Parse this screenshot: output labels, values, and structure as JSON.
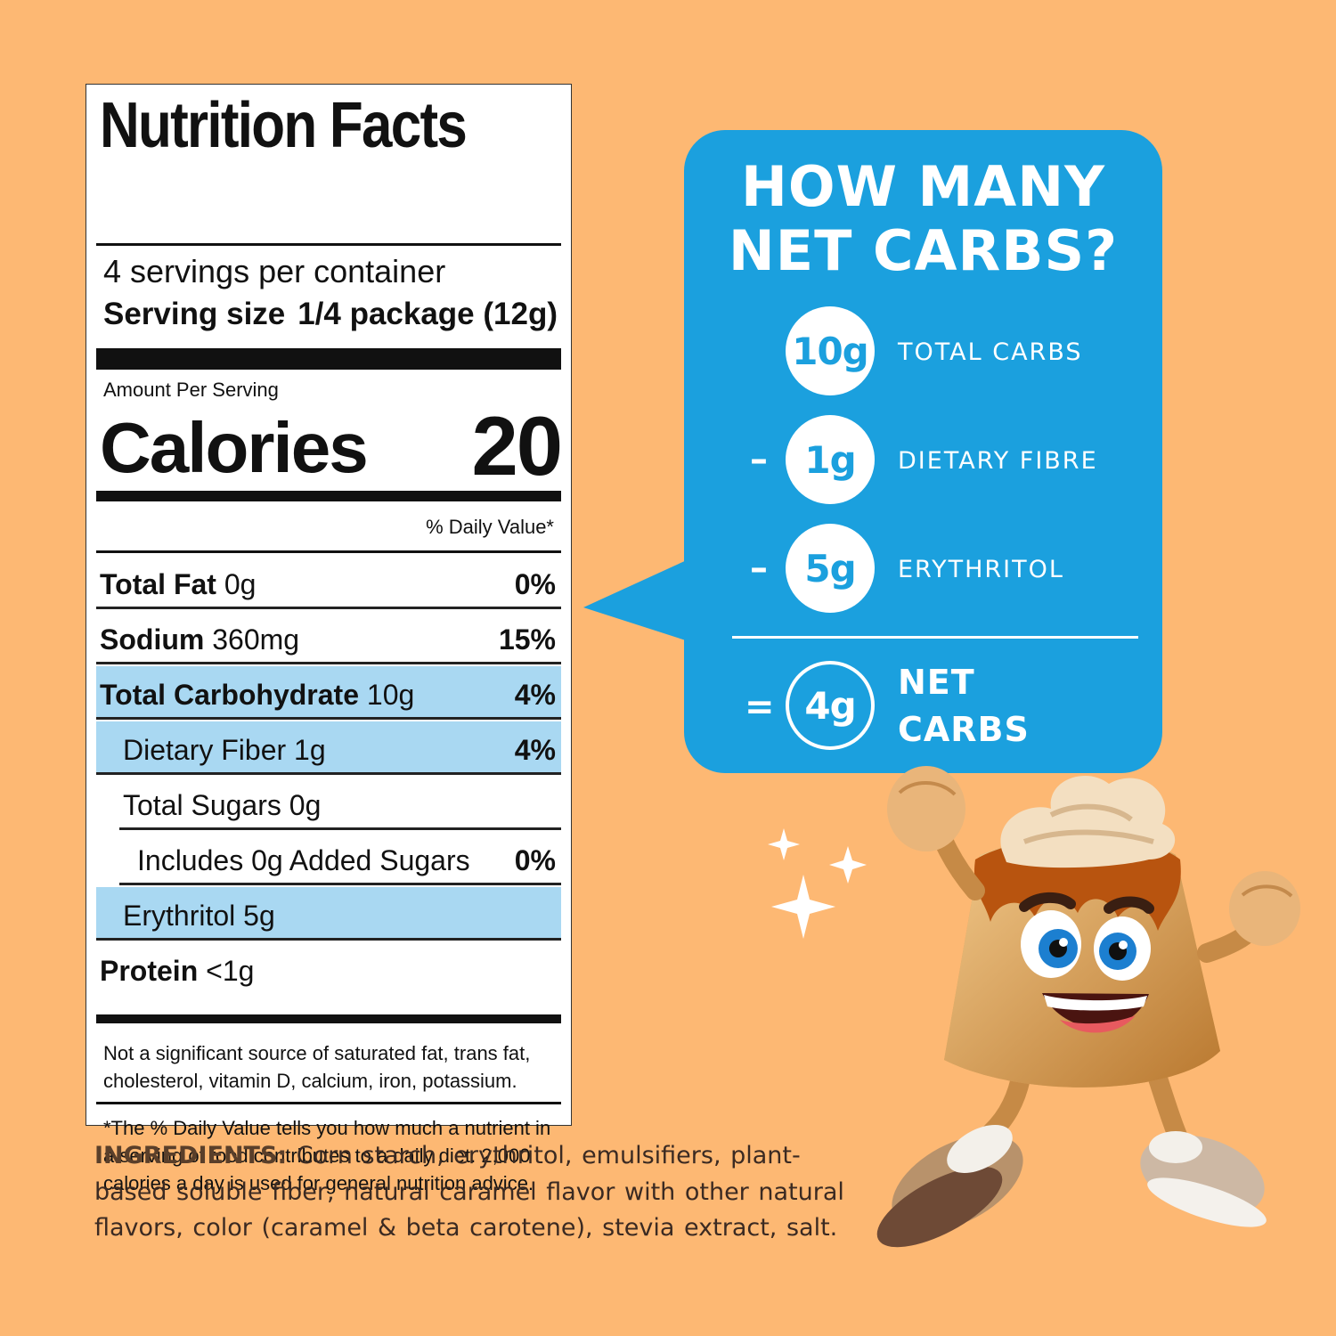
{
  "nutrition_facts": {
    "title": "Nutrition Facts",
    "servings_per_container": "4 servings per container",
    "serving_size_label": "Serving size",
    "serving_size_value": "1/4 package (12g)",
    "amount_per_serving": "Amount Per Serving",
    "calories_label": "Calories",
    "calories_value": "20",
    "daily_value_header": "% Daily Value*",
    "rows": [
      {
        "name_bold": "Total Fat",
        "amount": " 0g",
        "dv": "0%"
      },
      {
        "name_bold": "Sodium",
        "amount": " 360mg",
        "dv": "15%"
      },
      {
        "name_bold": "Total Carbohydrate",
        "amount": " 10g",
        "dv": "4%"
      },
      {
        "name": "Dietary Fiber 1g",
        "dv": "4%"
      },
      {
        "name": "Total Sugars 0g",
        "dv": ""
      },
      {
        "name": "Includes 0g Added Sugars",
        "dv": "0%"
      },
      {
        "name": "Erythritol 5g",
        "dv": ""
      },
      {
        "name_bold": "Protein",
        "amount": " <1g",
        "dv": ""
      }
    ],
    "footnote_1": "Not a significant source of saturated fat, trans fat, cholesterol, vitamin D, calcium, iron, potassium.",
    "footnote_2": "*The % Daily Value tells you how much a nutrient in a serving of food contributes to a daily diet. 2,000 calories a day is used for general nutrition advice."
  },
  "ingredients": {
    "label": "INGREDIENTS:",
    "text": " Corn starch, erythritol, emulsifiers, plant-based soluble fiber, natural caramel flavor with other natural flavors, color (caramel & beta carotene), stevia extract, salt."
  },
  "net_carbs": {
    "title_line_1": "HOW MANY",
    "title_line_2": "NET CARBS?",
    "items": [
      {
        "operator": "",
        "value": "10g",
        "label": "TOTAL CARBS"
      },
      {
        "operator": "–",
        "value": "1g",
        "label": "DIETARY FIBRE"
      },
      {
        "operator": "–",
        "value": "5g",
        "label": "ERYTHRITOL"
      }
    ],
    "result_operator": "=",
    "result_value": "4g",
    "result_label_1": "NET",
    "result_label_2": "CARBS"
  },
  "colors": {
    "background": "#fdb873",
    "bubble": "#1ba0de",
    "highlight_row": "#a9d8f2",
    "ingredients_text": "#3b2a22"
  },
  "icons": [
    "sparkle-icon",
    "pudding-mascot-illustration"
  ]
}
